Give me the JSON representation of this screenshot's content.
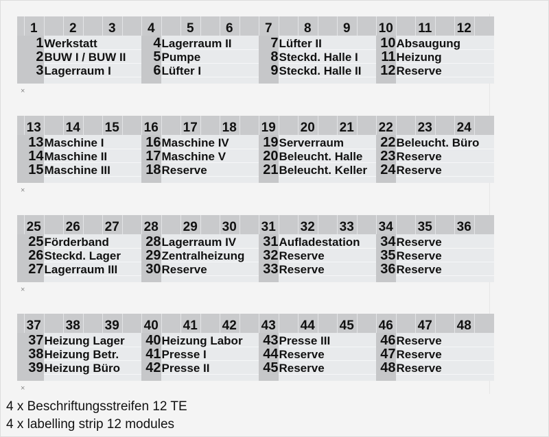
{
  "strips": [
    {
      "header": [
        "1",
        "2",
        "3",
        "4",
        "5",
        "6",
        "7",
        "8",
        "9",
        "10",
        "11",
        "12"
      ],
      "groups": [
        [
          [
            "1",
            "Werkstatt"
          ],
          [
            "2",
            "BUW I / BUW II"
          ],
          [
            "3",
            "Lagerraum I"
          ]
        ],
        [
          [
            "4",
            "Lagerraum II"
          ],
          [
            "5",
            "Pumpe"
          ],
          [
            "6",
            "Lüfter I"
          ]
        ],
        [
          [
            "7",
            "Lüfter II"
          ],
          [
            "8",
            "Steckd. Halle I"
          ],
          [
            "9",
            "Steckd. Halle II"
          ]
        ],
        [
          [
            "10",
            "Absaugung"
          ],
          [
            "11",
            "Heizung"
          ],
          [
            "12",
            "Reserve"
          ]
        ]
      ]
    },
    {
      "header": [
        "13",
        "14",
        "15",
        "16",
        "17",
        "18",
        "19",
        "20",
        "21",
        "22",
        "23",
        "24"
      ],
      "groups": [
        [
          [
            "13",
            "Maschine I"
          ],
          [
            "14",
            "Maschine II"
          ],
          [
            "15",
            "Maschine III"
          ]
        ],
        [
          [
            "16",
            "Maschine IV"
          ],
          [
            "17",
            "Maschine V"
          ],
          [
            "18",
            "Reserve"
          ]
        ],
        [
          [
            "19",
            "Serverraum"
          ],
          [
            "20",
            "Beleucht. Halle"
          ],
          [
            "21",
            "Beleucht. Keller"
          ]
        ],
        [
          [
            "22",
            "Beleucht. Büro"
          ],
          [
            "23",
            "Reserve"
          ],
          [
            "24",
            "Reserve"
          ]
        ]
      ]
    },
    {
      "header": [
        "25",
        "26",
        "27",
        "28",
        "29",
        "30",
        "31",
        "32",
        "33",
        "34",
        "35",
        "36"
      ],
      "groups": [
        [
          [
            "25",
            "Förderband"
          ],
          [
            "26",
            "Steckd. Lager"
          ],
          [
            "27",
            "Lagerraum III"
          ]
        ],
        [
          [
            "28",
            "Lagerraum IV"
          ],
          [
            "29",
            "Zentralheizung"
          ],
          [
            "30",
            "Reserve"
          ]
        ],
        [
          [
            "31",
            "Aufladestation"
          ],
          [
            "32",
            "Reserve"
          ],
          [
            "33",
            "Reserve"
          ]
        ],
        [
          [
            "34",
            "Reserve"
          ],
          [
            "35",
            "Reserve"
          ],
          [
            "36",
            "Reserve"
          ]
        ]
      ]
    },
    {
      "header": [
        "37",
        "38",
        "39",
        "40",
        "41",
        "42",
        "43",
        "44",
        "45",
        "46",
        "47",
        "48"
      ],
      "groups": [
        [
          [
            "37",
            "Heizung Lager"
          ],
          [
            "38",
            "Heizung Betr."
          ],
          [
            "39",
            "Heizung Büro"
          ]
        ],
        [
          [
            "40",
            "Heizung Labor"
          ],
          [
            "41",
            "Presse I"
          ],
          [
            "42",
            "Presse II"
          ]
        ],
        [
          [
            "43",
            "Presse III"
          ],
          [
            "44",
            "Reserve"
          ],
          [
            "45",
            "Reserve"
          ]
        ],
        [
          [
            "46",
            "Reserve"
          ],
          [
            "47",
            "Reserve"
          ],
          [
            "48",
            "Reserve"
          ]
        ]
      ]
    }
  ],
  "cut_mark": "×",
  "footer": {
    "line1": "4 x Beschriftungsstreifen 12 TE",
    "line2": "4 x labelling strip 12 modules"
  }
}
